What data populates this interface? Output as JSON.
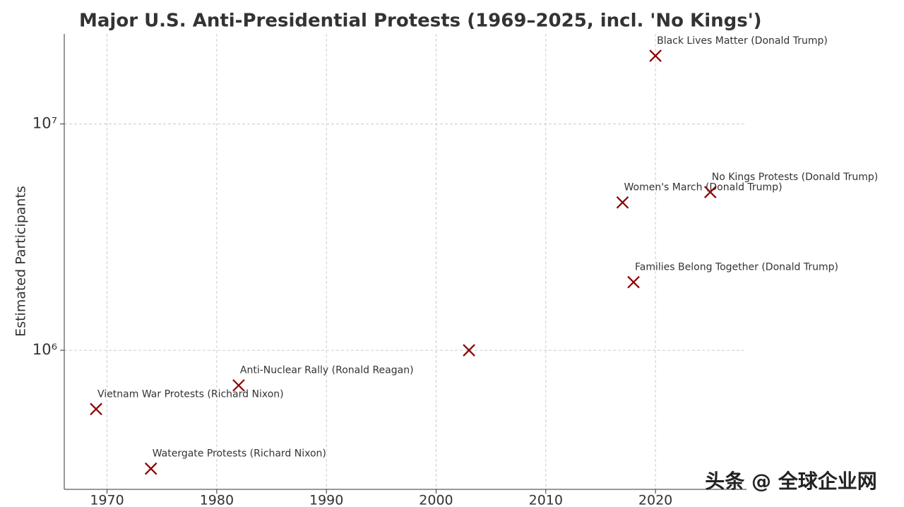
{
  "chart_data": {
    "type": "scatter",
    "title": "Major U.S. Anti-Presidential Protests (1969–2025, incl. 'No Kings')",
    "y_label": "Estimated Participants",
    "x": [
      1969,
      1974,
      1982,
      2003,
      2017,
      2018,
      2020,
      2025
    ],
    "values": [
      550000,
      300000,
      700000,
      1000000,
      4500000,
      2000000,
      20000000,
      5000000
    ],
    "labels": [
      "Vietnam War Protests (Richard Nixon)",
      "Watergate Protests (Richard Nixon)",
      "Anti-Nuclear Rally (Ronald Reagan)",
      null,
      "Women's March (Donald Trump)",
      "Families Belong Together (Donald Trump)",
      "Black Lives Matter (Donald Trump)",
      "No Kings Protests (Donald Trump)"
    ],
    "color": "#8b0000",
    "xlim": [
      1966.1,
      2028.3
    ],
    "xticks": [
      1970,
      1980,
      1990,
      2000,
      2010,
      2020
    ],
    "ylim": [
      243000,
      25000000
    ],
    "yticks": [
      {
        "value": 1000000,
        "label": "10⁶"
      },
      {
        "value": 10000000,
        "label": "10⁷"
      }
    ],
    "log_y": true,
    "grid": true,
    "watermark": "头条 @ 全球企业网"
  }
}
